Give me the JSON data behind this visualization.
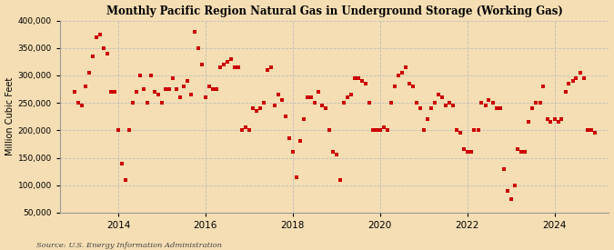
{
  "title": "Monthly Pacific Region Natural Gas in Underground Storage (Working Gas)",
  "ylabel": "Million Cubic Feet",
  "source": "Source: U.S. Energy Information Administration",
  "background_color": "#f5deb3",
  "plot_bg_color": "#f5deb3",
  "marker_color": "#cc0000",
  "marker": "s",
  "marker_size": 3,
  "ylim": [
    50000,
    400000
  ],
  "yticks": [
    50000,
    100000,
    150000,
    200000,
    250000,
    300000,
    350000,
    400000
  ],
  "ytick_labels": [
    "50,000",
    "100,000",
    "150,000",
    "200,000",
    "250,000",
    "300,000",
    "350,000",
    "400,000"
  ],
  "grid_color": "#bbbbbb",
  "grid_style": "--",
  "data": {
    "2013-01": 270000,
    "2013-02": 250000,
    "2013-03": 245000,
    "2013-04": 280000,
    "2013-05": 305000,
    "2013-06": 335000,
    "2013-07": 370000,
    "2013-08": 375000,
    "2013-09": 350000,
    "2013-10": 340000,
    "2013-11": 270000,
    "2013-12": 270000,
    "2014-01": 200000,
    "2014-02": 140000,
    "2014-03": 110000,
    "2014-04": 200000,
    "2014-05": 250000,
    "2014-06": 270000,
    "2014-07": 300000,
    "2014-08": 275000,
    "2014-09": 250000,
    "2014-10": 300000,
    "2014-11": 270000,
    "2014-12": 265000,
    "2015-01": 250000,
    "2015-02": 275000,
    "2015-03": 275000,
    "2015-04": 295000,
    "2015-05": 275000,
    "2015-06": 260000,
    "2015-07": 280000,
    "2015-08": 290000,
    "2015-09": 265000,
    "2015-10": 380000,
    "2015-11": 350000,
    "2015-12": 320000,
    "2016-01": 260000,
    "2016-02": 280000,
    "2016-03": 275000,
    "2016-04": 275000,
    "2016-05": 315000,
    "2016-06": 320000,
    "2016-07": 325000,
    "2016-08": 330000,
    "2016-09": 315000,
    "2016-10": 315000,
    "2016-11": 200000,
    "2016-12": 205000,
    "2017-01": 200000,
    "2017-02": 240000,
    "2017-03": 235000,
    "2017-04": 240000,
    "2017-05": 250000,
    "2017-06": 310000,
    "2017-07": 315000,
    "2017-08": 245000,
    "2017-09": 265000,
    "2017-10": 255000,
    "2017-11": 225000,
    "2017-12": 185000,
    "2018-01": 160000,
    "2018-02": 115000,
    "2018-03": 180000,
    "2018-04": 220000,
    "2018-05": 260000,
    "2018-06": 260000,
    "2018-07": 250000,
    "2018-08": 270000,
    "2018-09": 245000,
    "2018-10": 240000,
    "2018-11": 200000,
    "2018-12": 160000,
    "2019-01": 155000,
    "2019-02": 110000,
    "2019-03": 250000,
    "2019-04": 260000,
    "2019-05": 265000,
    "2019-06": 295000,
    "2019-07": 295000,
    "2019-08": 290000,
    "2019-09": 285000,
    "2019-10": 250000,
    "2019-11": 200000,
    "2019-12": 200000,
    "2020-01": 200000,
    "2020-02": 205000,
    "2020-03": 200000,
    "2020-04": 250000,
    "2020-05": 280000,
    "2020-06": 300000,
    "2020-07": 305000,
    "2020-08": 315000,
    "2020-09": 285000,
    "2020-10": 280000,
    "2020-11": 250000,
    "2020-12": 240000,
    "2021-01": 200000,
    "2021-02": 220000,
    "2021-03": 240000,
    "2021-04": 250000,
    "2021-05": 265000,
    "2021-06": 260000,
    "2021-07": 245000,
    "2021-08": 250000,
    "2021-09": 245000,
    "2021-10": 200000,
    "2021-11": 195000,
    "2021-12": 165000,
    "2022-01": 160000,
    "2022-02": 160000,
    "2022-03": 200000,
    "2022-04": 200000,
    "2022-05": 250000,
    "2022-06": 245000,
    "2022-07": 255000,
    "2022-08": 250000,
    "2022-09": 240000,
    "2022-10": 240000,
    "2022-11": 130000,
    "2022-12": 90000,
    "2023-01": 75000,
    "2023-02": 100000,
    "2023-03": 165000,
    "2023-04": 160000,
    "2023-05": 160000,
    "2023-06": 215000,
    "2023-07": 240000,
    "2023-08": 250000,
    "2023-09": 250000,
    "2023-10": 280000,
    "2023-11": 220000,
    "2023-12": 215000,
    "2024-01": 220000,
    "2024-02": 215000,
    "2024-03": 220000,
    "2024-04": 270000,
    "2024-05": 285000,
    "2024-06": 290000,
    "2024-07": 295000,
    "2024-08": 305000,
    "2024-09": 295000,
    "2024-10": 200000,
    "2024-11": 200000,
    "2024-12": 195000
  }
}
